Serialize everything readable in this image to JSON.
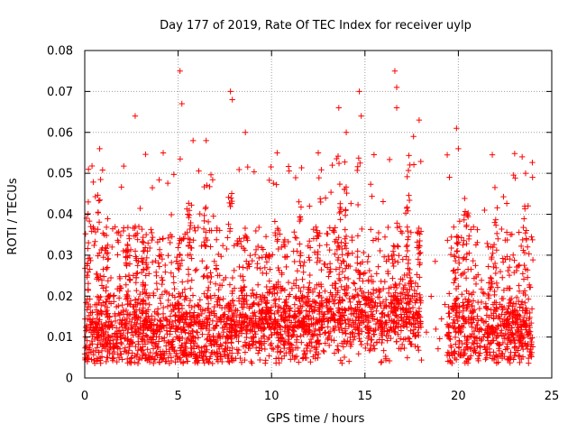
{
  "chart_data": {
    "type": "scatter",
    "title": "Day 177 of 2019, Rate Of TEC Index for receiver uylp",
    "xlabel": "GPS time / hours",
    "ylabel": "ROTI / TECUs",
    "xlim": [
      0,
      25
    ],
    "ylim": [
      0,
      0.08
    ],
    "xticks": [
      0,
      5,
      10,
      15,
      20,
      25
    ],
    "xtick_labels": [
      "0",
      "5",
      "10",
      "15",
      "20",
      "25"
    ],
    "yticks": [
      0,
      0.01,
      0.02,
      0.03,
      0.04,
      0.05,
      0.06,
      0.07,
      0.08
    ],
    "ytick_labels": [
      "0",
      "0.01",
      "0.02",
      "0.03",
      "0.04",
      "0.05",
      "0.06",
      "0.07",
      "0.08"
    ],
    "grid": true,
    "marker": "+",
    "marker_color": "#ff0000",
    "series": [
      {
        "name": "ROTI",
        "data_range_x": [
          0,
          24
        ],
        "typical_range_y": [
          0.004,
          0.03
        ],
        "notable_points": [
          {
            "x": 0.2,
            "y": 0.051
          },
          {
            "x": 0.8,
            "y": 0.056
          },
          {
            "x": 2.7,
            "y": 0.064
          },
          {
            "x": 4.2,
            "y": 0.055
          },
          {
            "x": 5.1,
            "y": 0.075
          },
          {
            "x": 5.2,
            "y": 0.067
          },
          {
            "x": 5.8,
            "y": 0.058
          },
          {
            "x": 6.5,
            "y": 0.058
          },
          {
            "x": 7.8,
            "y": 0.07
          },
          {
            "x": 7.9,
            "y": 0.068
          },
          {
            "x": 8.6,
            "y": 0.06
          },
          {
            "x": 10.3,
            "y": 0.055
          },
          {
            "x": 12.5,
            "y": 0.055
          },
          {
            "x": 13.6,
            "y": 0.066
          },
          {
            "x": 14.0,
            "y": 0.06
          },
          {
            "x": 14.7,
            "y": 0.07
          },
          {
            "x": 14.8,
            "y": 0.064
          },
          {
            "x": 16.6,
            "y": 0.075
          },
          {
            "x": 16.7,
            "y": 0.071
          },
          {
            "x": 16.7,
            "y": 0.066
          },
          {
            "x": 17.6,
            "y": 0.059
          },
          {
            "x": 17.9,
            "y": 0.063
          },
          {
            "x": 19.9,
            "y": 0.061
          },
          {
            "x": 20.0,
            "y": 0.056
          },
          {
            "x": 23.6,
            "y": 0.05
          }
        ]
      }
    ]
  }
}
